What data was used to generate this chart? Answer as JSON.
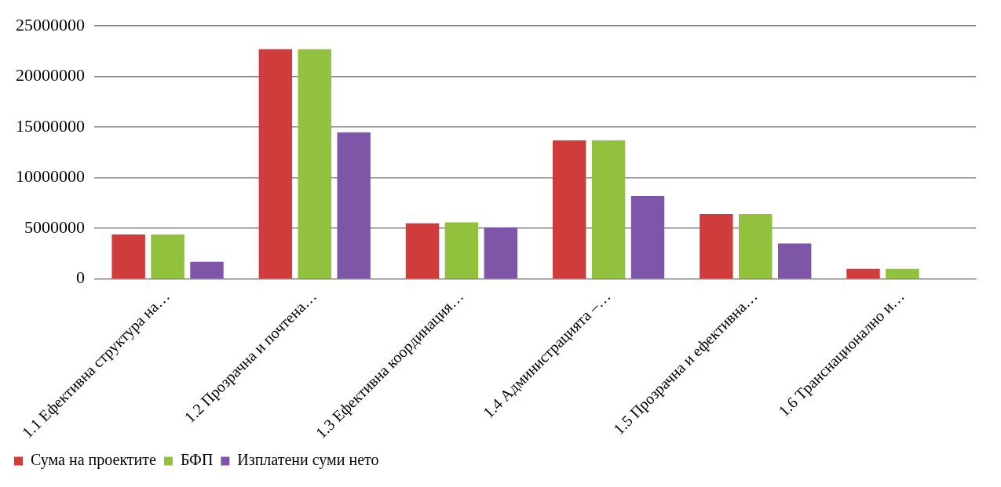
{
  "chart_data": {
    "type": "bar",
    "categories": [
      "1.1 Ефективна структура на…",
      "1.2 Прозрачна и почтена…",
      "1.3 Ефективна координация…",
      "1.4 Администрацията –…",
      "1.5 Прозрачна и ефективна…",
      "1.6 Транснационално и…"
    ],
    "series": [
      {
        "name": "Сума на проектите",
        "color": "#d03c3c",
        "values": [
          4400000,
          22700000,
          5500000,
          13700000,
          6400000,
          1000000
        ]
      },
      {
        "name": "БФП",
        "color": "#92c13d",
        "values": [
          4400000,
          22700000,
          5600000,
          13700000,
          6400000,
          1000000
        ]
      },
      {
        "name": "Изплатени суми нето",
        "color": "#7d56a8",
        "values": [
          1700000,
          14500000,
          5100000,
          8200000,
          3500000,
          0
        ]
      }
    ],
    "ylim": [
      0,
      25000000
    ],
    "yticks": [
      0,
      5000000,
      10000000,
      15000000,
      20000000,
      25000000
    ],
    "grid": "y",
    "legend": "bottom left"
  }
}
